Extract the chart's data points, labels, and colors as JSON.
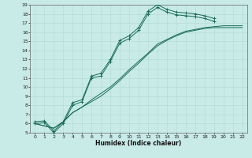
{
  "xlabel": "Humidex (Indice chaleur)",
  "bg_color": "#c8ebe8",
  "grid_color": "#afd9d5",
  "line_color": "#1a6b5a",
  "xlim": [
    -0.5,
    22.5
  ],
  "ylim": [
    5,
    19
  ],
  "xticks": [
    0,
    1,
    2,
    3,
    4,
    5,
    6,
    7,
    8,
    9,
    10,
    11,
    12,
    13,
    14,
    15,
    16,
    17,
    18,
    19,
    20,
    21,
    22
  ],
  "yticks": [
    5,
    6,
    7,
    8,
    9,
    10,
    11,
    12,
    13,
    14,
    15,
    16,
    17,
    18,
    19
  ],
  "series1_x": [
    0,
    1,
    2,
    3,
    4,
    5,
    6,
    7,
    8,
    9,
    10,
    11,
    12,
    13,
    14,
    15,
    16,
    17,
    18,
    19
  ],
  "series1_y": [
    6.2,
    6.3,
    5.2,
    6.2,
    8.3,
    8.6,
    11.2,
    11.5,
    13.0,
    15.1,
    15.6,
    16.5,
    18.3,
    19.0,
    18.5,
    18.2,
    18.1,
    18.0,
    17.8,
    17.5
  ],
  "series2_x": [
    0,
    1,
    2,
    3,
    4,
    5,
    6,
    7,
    8,
    9,
    10,
    11,
    12,
    13,
    14,
    15,
    16,
    17,
    18,
    19
  ],
  "series2_y": [
    6.0,
    6.1,
    5.0,
    6.0,
    8.0,
    8.4,
    11.0,
    11.2,
    12.8,
    14.8,
    15.3,
    16.2,
    18.0,
    18.7,
    18.2,
    17.9,
    17.8,
    17.7,
    17.5,
    17.2
  ],
  "series3_x": [
    0,
    2,
    3,
    4,
    5,
    6,
    7,
    8,
    9,
    10,
    11,
    12,
    13,
    14,
    15,
    16,
    17,
    18,
    19,
    20,
    21,
    22
  ],
  "series3_y": [
    6.0,
    5.5,
    6.2,
    7.2,
    7.8,
    8.4,
    9.0,
    9.8,
    10.7,
    11.7,
    12.6,
    13.6,
    14.5,
    15.1,
    15.6,
    16.0,
    16.2,
    16.4,
    16.5,
    16.5,
    16.5,
    16.5
  ],
  "series4_x": [
    0,
    2,
    3,
    4,
    5,
    6,
    7,
    8,
    9,
    10,
    11,
    12,
    13,
    14,
    15,
    16,
    17,
    18,
    19,
    20,
    21,
    22
  ],
  "series4_y": [
    6.0,
    5.5,
    6.2,
    7.2,
    7.8,
    8.6,
    9.3,
    10.0,
    10.9,
    11.9,
    12.8,
    13.7,
    14.7,
    15.2,
    15.7,
    16.1,
    16.3,
    16.5,
    16.6,
    16.7,
    16.7,
    16.7
  ]
}
